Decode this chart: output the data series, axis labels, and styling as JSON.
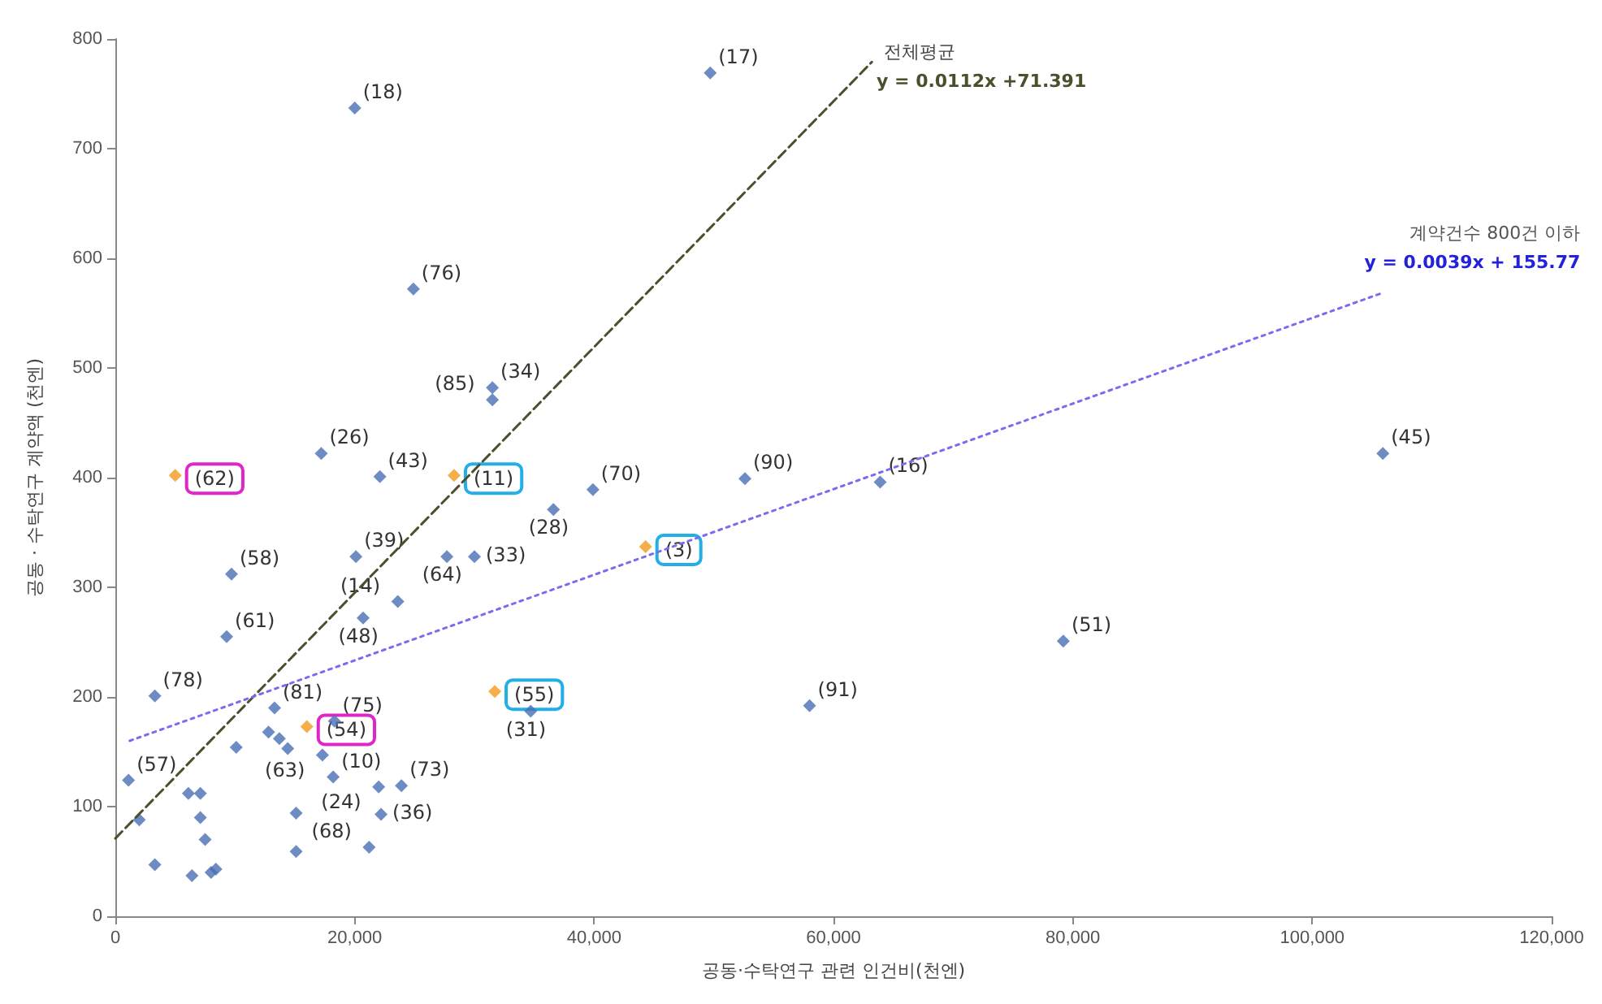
{
  "chart_data": {
    "type": "scatter",
    "xlabel": "공동·수탁연구 관련 인건비(천엔)",
    "ylabel": "공동 · 수탁연구 계약액 (천엔)",
    "xlim": [
      0,
      120000
    ],
    "ylim": [
      0,
      800
    ],
    "xticks": [
      {
        "value": 0,
        "label": "0"
      },
      {
        "value": 20000,
        "label": "20,000"
      },
      {
        "value": 40000,
        "label": "40,000"
      },
      {
        "value": 60000,
        "label": "60,000"
      },
      {
        "value": 80000,
        "label": "80,000"
      },
      {
        "value": 100000,
        "label": "100,000"
      },
      {
        "value": 120000,
        "label": "120,000"
      }
    ],
    "yticks": [
      0,
      100,
      200,
      300,
      400,
      500,
      600,
      700,
      800
    ],
    "grid": false,
    "marker": "diamond",
    "series": [
      {
        "color": "#4a6fb5",
        "x": [
          20000,
          49700,
          24900,
          31500,
          31500,
          17200,
          22100,
          36600,
          39900,
          52600,
          63900,
          105900,
          79200,
          58000,
          20100,
          27700,
          30000,
          9700,
          23600,
          20700,
          9300,
          3300,
          34700,
          13300,
          18300,
          12800,
          13700,
          14400,
          17300,
          10100,
          1100,
          18200,
          22000,
          23900,
          22200,
          21200,
          2000,
          6100,
          7100,
          7100,
          7500,
          15100,
          15100,
          3300,
          6400,
          8000,
          8400
        ],
        "values": [
          737,
          769,
          572,
          482,
          471,
          422,
          401,
          371,
          389,
          399,
          396,
          422,
          251,
          192,
          328,
          328,
          328,
          312,
          287,
          272,
          255,
          201,
          187,
          190,
          178,
          168,
          162,
          153,
          147,
          154,
          124,
          127,
          118,
          119,
          93,
          63,
          88,
          112,
          112,
          90,
          70,
          94,
          59,
          47,
          37,
          40,
          43
        ]
      },
      {
        "color": "#f39a1c",
        "x": [
          5000,
          16000
        ],
        "values": [
          402,
          173
        ]
      },
      {
        "color": "#f39a1c",
        "x": [
          28300,
          44300,
          31700
        ],
        "values": [
          402,
          337,
          205
        ]
      },
      {
        "type": "line",
        "marker": "none",
        "color": "#4d4f2c",
        "line_style": "dashed",
        "x": [
          0,
          63200
        ],
        "values": [
          71,
          779
        ]
      },
      {
        "type": "line",
        "marker": "none",
        "color": "#7a6cf0",
        "line_style": "dotted",
        "x": [
          1200,
          106000
        ],
        "values": [
          160,
          569
        ]
      }
    ],
    "annotations": [
      "전체평균",
      "y = 0.0112x +71.391",
      "계약건수 800건 이하",
      "y = 0.0039x + 155.77",
      {
        "text": "(17)",
        "x": 49700,
        "y": 769
      },
      {
        "text": "(18)",
        "x": 20000,
        "y": 737
      },
      {
        "text": "(76)",
        "x": 24900,
        "y": 572
      },
      {
        "text": "(34)",
        "x": 31500,
        "y": 482
      },
      {
        "text": "(85)",
        "x": 31500,
        "y": 471
      },
      {
        "text": "(26)",
        "x": 17200,
        "y": 422
      },
      {
        "text": "(45)",
        "x": 105900,
        "y": 422
      },
      {
        "text": "(62)",
        "x": 5000,
        "y": 402
      },
      {
        "text": "(11)",
        "x": 28300,
        "y": 402
      },
      {
        "text": "(43)",
        "x": 22100,
        "y": 401
      },
      {
        "text": "(90)",
        "x": 52600,
        "y": 399
      },
      {
        "text": "(16)",
        "x": 63900,
        "y": 396
      },
      {
        "text": "(70)",
        "x": 39900,
        "y": 389
      },
      {
        "text": "(28)",
        "x": 36600,
        "y": 371
      },
      {
        "text": "(3)",
        "x": 44300,
        "y": 337
      },
      {
        "text": "(39)",
        "x": 20100,
        "y": 328
      },
      {
        "text": "(64)",
        "x": 27700,
        "y": 328
      },
      {
        "text": "(33)",
        "x": 30000,
        "y": 328
      },
      {
        "text": "(58)",
        "x": 9700,
        "y": 312
      },
      {
        "text": "(14)",
        "x": 23600,
        "y": 287
      },
      {
        "text": "(48)",
        "x": 20700,
        "y": 272
      },
      {
        "text": "(61)",
        "x": 9300,
        "y": 255
      },
      {
        "text": "(51)",
        "x": 79200,
        "y": 251
      },
      {
        "text": "(55)",
        "x": 31700,
        "y": 205
      },
      {
        "text": "(78)",
        "x": 3300,
        "y": 201
      },
      {
        "text": "(91)",
        "x": 58000,
        "y": 192
      },
      {
        "text": "(81)",
        "x": 13300,
        "y": 190
      },
      {
        "text": "(31)",
        "x": 34700,
        "y": 187
      },
      {
        "text": "(75)",
        "x": 18300,
        "y": 178
      },
      {
        "text": "(54)",
        "x": 16000,
        "y": 173
      },
      {
        "text": "(63)",
        "x": 17300,
        "y": 147
      },
      {
        "text": "(10)",
        "x": 18200,
        "y": 127
      },
      {
        "text": "(57)",
        "x": 1100,
        "y": 124
      },
      {
        "text": "(73)",
        "x": 23900,
        "y": 119
      },
      {
        "text": "(24)",
        "x": 22000,
        "y": 118
      },
      {
        "text": "(36)",
        "x": 22200,
        "y": 93
      },
      {
        "text": "(68)",
        "x": 21200,
        "y": 63
      }
    ]
  }
}
